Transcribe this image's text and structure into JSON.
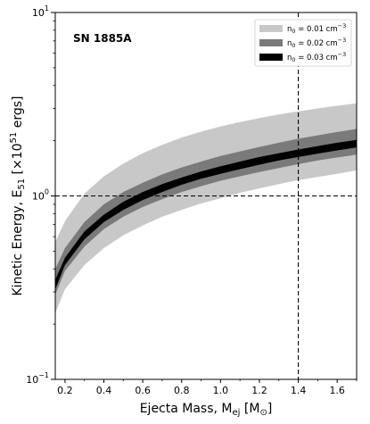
{
  "chart_data": {
    "type": "area",
    "annotation": "SN 1885A",
    "xlabel": {
      "main": "Ejecta Mass, M",
      "sub": "ej",
      "unit_open": " [M",
      "unit_sub": "⊙",
      "unit_close": "]"
    },
    "ylabel": {
      "main": "Kinetic Energy, E",
      "sub": "51",
      "unit_open": " [×10",
      "unit_sup": "51",
      "unit_close": " ergs]"
    },
    "xlim": [
      0.15,
      1.7
    ],
    "ylim": [
      0.1,
      10
    ],
    "yscale": "log",
    "xticks": [
      0.2,
      0.4,
      0.6,
      0.8,
      1.0,
      1.2,
      1.4,
      1.6
    ],
    "xtick_labels": [
      "0.2",
      "0.4",
      "0.6",
      "0.8",
      "1.0",
      "1.2",
      "1.4",
      "1.6"
    ],
    "yticks": [
      0.1,
      1,
      10
    ],
    "ytick_labels": [
      {
        "base": "10",
        "exp": "−1"
      },
      {
        "base": "10",
        "exp": "0"
      },
      {
        "base": "10",
        "exp": "1"
      }
    ],
    "reference_lines": {
      "x": 1.4,
      "y": 1.0
    },
    "legend_position": "top-right",
    "x": [
      0.15,
      0.2,
      0.3,
      0.4,
      0.5,
      0.6,
      0.7,
      0.8,
      0.9,
      1.0,
      1.1,
      1.2,
      1.3,
      1.4,
      1.5,
      1.6,
      1.7
    ],
    "series": [
      {
        "name_prefix": "n",
        "name_sub": "0",
        "name_value": " = 0.01 cm",
        "name_sup": "−3",
        "color": "#c8c8c8",
        "lower": [
          0.23,
          0.31,
          0.42,
          0.52,
          0.61,
          0.69,
          0.77,
          0.84,
          0.91,
          0.97,
          1.04,
          1.1,
          1.16,
          1.22,
          1.27,
          1.32,
          1.38
        ],
        "upper": [
          0.56,
          0.73,
          1.03,
          1.28,
          1.5,
          1.71,
          1.9,
          2.08,
          2.24,
          2.39,
          2.53,
          2.66,
          2.78,
          2.89,
          3.0,
          3.1,
          3.2
        ]
      },
      {
        "name_prefix": "n",
        "name_sub": "0",
        "name_value": " = 0.02 cm",
        "name_sup": "−3",
        "color": "#7a7a7a",
        "lower": [
          0.29,
          0.39,
          0.53,
          0.66,
          0.77,
          0.87,
          0.96,
          1.05,
          1.13,
          1.21,
          1.28,
          1.35,
          1.42,
          1.49,
          1.56,
          1.62,
          1.68
        ],
        "upper": [
          0.4,
          0.52,
          0.72,
          0.9,
          1.05,
          1.18,
          1.31,
          1.43,
          1.54,
          1.65,
          1.75,
          1.85,
          1.95,
          2.05,
          2.14,
          2.23,
          2.32
        ]
      },
      {
        "name_prefix": "n",
        "name_sub": "0",
        "name_value": " = 0.03 cm",
        "name_sup": "−3",
        "color": "#000000",
        "lower": [
          0.31,
          0.42,
          0.58,
          0.72,
          0.84,
          0.95,
          1.05,
          1.15,
          1.24,
          1.32,
          1.4,
          1.48,
          1.56,
          1.63,
          1.7,
          1.77,
          1.84
        ],
        "upper": [
          0.35,
          0.46,
          0.64,
          0.79,
          0.93,
          1.05,
          1.16,
          1.26,
          1.36,
          1.45,
          1.54,
          1.63,
          1.71,
          1.79,
          1.87,
          1.95,
          2.02
        ]
      }
    ]
  }
}
